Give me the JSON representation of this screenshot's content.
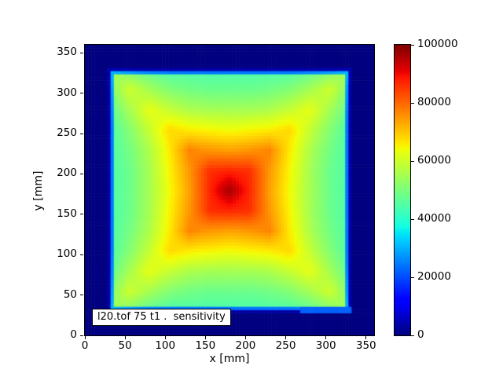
{
  "figure": {
    "background": "#ffffff"
  },
  "chart_data": {
    "type": "heatmap",
    "title": "",
    "annotation": "l20.tof 75 t1 .  sensitivity",
    "xlabel": "x [mm]",
    "ylabel": "y [mm]",
    "xlim": [
      0,
      360
    ],
    "ylim": [
      0,
      360
    ],
    "x_ticks": [
      0,
      50,
      100,
      150,
      200,
      250,
      300,
      350
    ],
    "y_ticks": [
      0,
      50,
      100,
      150,
      200,
      250,
      300,
      350
    ],
    "grid": false,
    "colorbar": {
      "min": 0,
      "max": 100000,
      "ticks": [
        0,
        20000,
        40000,
        60000,
        80000,
        100000
      ],
      "position": "right"
    },
    "background_value": 0,
    "square_mm": [
      30,
      330
    ],
    "grid_step_mm": 25,
    "cell_mm": 4,
    "edge_ramp_mm": 8,
    "edge_ramp_floor": 0.08,
    "low_strip": {
      "x": [
        268,
        330
      ],
      "y": [
        30,
        37
      ],
      "value": 22000
    },
    "values": [
      [
        58000,
        50000,
        46000,
        44000,
        44000,
        44000,
        44000,
        44000,
        44000,
        44000,
        46000,
        50000,
        58000
      ],
      [
        50000,
        60000,
        55000,
        51000,
        49000,
        48000,
        48000,
        48000,
        49000,
        51000,
        55000,
        60000,
        50000
      ],
      [
        46000,
        55000,
        63000,
        59000,
        56000,
        55000,
        55000,
        55000,
        56000,
        59000,
        63000,
        55000,
        46000
      ],
      [
        44000,
        51000,
        59000,
        68000,
        66000,
        65000,
        64000,
        65000,
        66000,
        68000,
        59000,
        51000,
        44000
      ],
      [
        44000,
        49000,
        56000,
        66000,
        77000,
        75000,
        74000,
        75000,
        77000,
        66000,
        56000,
        49000,
        44000
      ],
      [
        44000,
        48000,
        55000,
        65000,
        75000,
        86000,
        87000,
        86000,
        75000,
        65000,
        55000,
        48000,
        44000
      ],
      [
        44000,
        48000,
        55000,
        64000,
        74000,
        87000,
        97000,
        87000,
        74000,
        64000,
        55000,
        48000,
        44000
      ],
      [
        44000,
        48000,
        55000,
        65000,
        75000,
        86000,
        87000,
        86000,
        75000,
        65000,
        55000,
        48000,
        44000
      ],
      [
        44000,
        49000,
        56000,
        66000,
        77000,
        75000,
        74000,
        75000,
        77000,
        66000,
        56000,
        49000,
        44000
      ],
      [
        44000,
        51000,
        59000,
        68000,
        66000,
        65000,
        64000,
        65000,
        66000,
        68000,
        59000,
        51000,
        44000
      ],
      [
        46000,
        55000,
        63000,
        59000,
        56000,
        55000,
        55000,
        55000,
        56000,
        59000,
        63000,
        55000,
        46000
      ],
      [
        50000,
        60000,
        55000,
        51000,
        49000,
        48000,
        48000,
        48000,
        49000,
        51000,
        55000,
        60000,
        50000
      ],
      [
        58000,
        50000,
        46000,
        44000,
        44000,
        44000,
        44000,
        44000,
        44000,
        44000,
        46000,
        50000,
        58000
      ]
    ],
    "colormap": {
      "name": "jet",
      "low_color": "#000080",
      "high_color": "#800000",
      "r": [
        [
          0,
          0
        ],
        [
          0.35,
          0
        ],
        [
          0.66,
          1
        ],
        [
          0.89,
          1
        ],
        [
          1,
          0.5
        ]
      ],
      "g": [
        [
          0,
          0
        ],
        [
          0.125,
          0
        ],
        [
          0.375,
          1
        ],
        [
          0.64,
          1
        ],
        [
          0.91,
          0
        ],
        [
          1,
          0
        ]
      ],
      "b": [
        [
          0,
          0.5
        ],
        [
          0.11,
          1
        ],
        [
          0.34,
          1
        ],
        [
          0.65,
          0
        ],
        [
          1,
          0
        ]
      ]
    }
  }
}
